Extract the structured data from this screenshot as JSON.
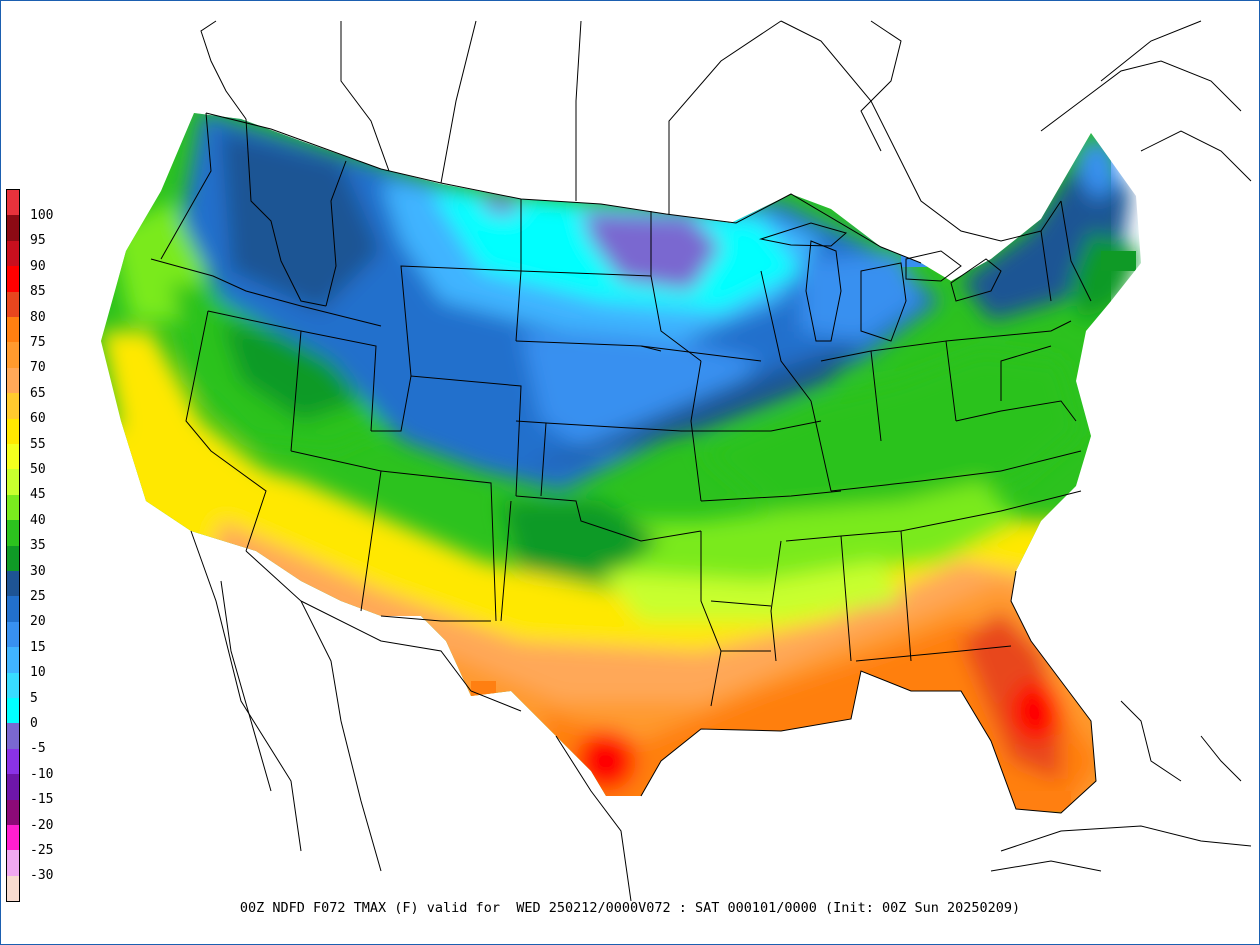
{
  "caption": "00Z NDFD F072 TMAX (F) valid for  WED 250212/0000V072 : SAT 000101/0000 (Init: 00Z Sun 20250209)",
  "legend": [
    {
      "label": "100",
      "color": "#e8323c"
    },
    {
      "label": "95",
      "color": "#8c0a14"
    },
    {
      "label": "90",
      "color": "#c80f1e"
    },
    {
      "label": "85",
      "color": "#ff0000"
    },
    {
      "label": "80",
      "color": "#e8461e"
    },
    {
      "label": "75",
      "color": "#ff7f11"
    },
    {
      "label": "70",
      "color": "#ff9a2e"
    },
    {
      "label": "65",
      "color": "#ffa858"
    },
    {
      "label": "60",
      "color": "#ffca2e"
    },
    {
      "label": "55",
      "color": "#ffe800"
    },
    {
      "label": "50",
      "color": "#f4ff1e"
    },
    {
      "label": "45",
      "color": "#c8ff2e"
    },
    {
      "label": "40",
      "color": "#7aea1e"
    },
    {
      "label": "35",
      "color": "#2cc21e"
    },
    {
      "label": "30",
      "color": "#0f9a26"
    },
    {
      "label": "25",
      "color": "#1e5494"
    },
    {
      "label": "20",
      "color": "#2270cc"
    },
    {
      "label": "15",
      "color": "#3890f0"
    },
    {
      "label": "10",
      "color": "#40b4ff"
    },
    {
      "label": "5",
      "color": "#38dcff"
    },
    {
      "label": "0",
      "color": "#00ffff"
    },
    {
      "label": "-5",
      "color": "#7a68d0"
    },
    {
      "label": "-10",
      "color": "#8a32e6"
    },
    {
      "label": "-15",
      "color": "#6e16aa"
    },
    {
      "label": "-20",
      "color": "#8c0a78"
    },
    {
      "label": "-25",
      "color": "#ff1ed0"
    },
    {
      "label": "-30",
      "color": "#f0a8f0"
    },
    {
      "label": "",
      "color": "#f8dcd0"
    }
  ]
}
